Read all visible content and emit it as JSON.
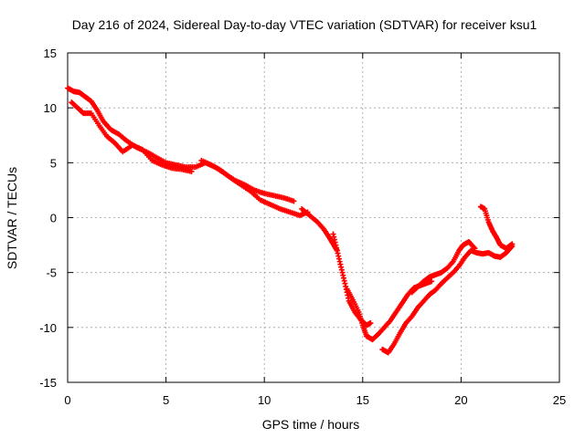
{
  "chart_data": {
    "type": "scatter",
    "title": "Day 216 of 2024, Sidereal Day-to-day VTEC variation (SDTVAR) for receiver ksu1",
    "xlabel": "GPS time / hours",
    "ylabel": "SDTVAR / TECUs",
    "xlim": [
      0,
      25
    ],
    "ylim": [
      -15,
      15
    ],
    "x_ticks": [
      0,
      5,
      10,
      15,
      20,
      25
    ],
    "y_ticks": [
      -15,
      -10,
      -5,
      0,
      5,
      10,
      15
    ],
    "x_tick_labels": [
      "0",
      "5",
      "10",
      "15",
      "20",
      "25"
    ],
    "y_tick_labels": [
      "-15",
      "-10",
      "-5",
      "0",
      "5",
      "10",
      "15"
    ],
    "grid": true,
    "marker": "+",
    "series": [
      {
        "name": "ksu1",
        "color": "#ff0000",
        "tracks": [
          [
            [
              0.0,
              11.8
            ],
            [
              0.3,
              11.5
            ],
            [
              0.6,
              11.4
            ],
            [
              0.9,
              11.0
            ],
            [
              1.2,
              10.6
            ],
            [
              1.5,
              9.8
            ],
            [
              1.8,
              8.8
            ],
            [
              2.2,
              8.0
            ],
            [
              2.6,
              7.6
            ],
            [
              3.0,
              7.0
            ],
            [
              3.5,
              6.4
            ],
            [
              4.0,
              6.0
            ],
            [
              4.5,
              5.5
            ],
            [
              5.0,
              5.0
            ],
            [
              5.5,
              4.8
            ],
            [
              6.0,
              4.6
            ],
            [
              6.5,
              4.6
            ],
            [
              7.0,
              5.0
            ],
            [
              7.5,
              4.6
            ],
            [
              8.0,
              4.0
            ],
            [
              8.5,
              3.4
            ],
            [
              9.0,
              3.0
            ],
            [
              9.5,
              2.5
            ],
            [
              10.0,
              2.2
            ],
            [
              10.5,
              2.0
            ],
            [
              11.0,
              1.8
            ],
            [
              11.5,
              1.5
            ]
          ],
          [
            [
              0.2,
              10.5
            ],
            [
              0.5,
              10.0
            ],
            [
              0.8,
              9.5
            ],
            [
              1.2,
              9.5
            ],
            [
              1.6,
              8.4
            ],
            [
              2.0,
              7.4
            ],
            [
              2.4,
              6.8
            ],
            [
              2.8,
              6.0
            ],
            [
              3.3,
              6.6
            ],
            [
              3.8,
              6.2
            ],
            [
              4.3,
              5.2
            ],
            [
              4.8,
              4.8
            ],
            [
              5.3,
              4.5
            ],
            [
              5.8,
              4.4
            ],
            [
              6.3,
              4.2
            ]
          ],
          [
            [
              6.8,
              5.2
            ],
            [
              7.3,
              4.8
            ],
            [
              7.8,
              4.3
            ],
            [
              8.3,
              3.6
            ],
            [
              8.8,
              3.0
            ],
            [
              9.3,
              2.4
            ],
            [
              9.8,
              1.6
            ],
            [
              10.3,
              1.2
            ],
            [
              10.8,
              0.8
            ],
            [
              11.3,
              0.5
            ],
            [
              11.8,
              0.2
            ],
            [
              12.2,
              0.5
            ]
          ],
          [
            [
              11.9,
              0.8
            ],
            [
              12.3,
              0.2
            ],
            [
              12.7,
              -0.4
            ],
            [
              13.0,
              -1.0
            ],
            [
              13.3,
              -1.8
            ],
            [
              13.5,
              -2.4
            ],
            [
              13.7,
              -3.0
            ]
          ],
          [
            [
              13.5,
              -1.5
            ],
            [
              13.7,
              -3.0
            ],
            [
              13.9,
              -4.5
            ],
            [
              14.1,
              -6.0
            ],
            [
              14.3,
              -7.6
            ],
            [
              14.6,
              -8.6
            ],
            [
              14.9,
              -9.3
            ],
            [
              15.2,
              -9.8
            ],
            [
              15.4,
              -9.6
            ]
          ],
          [
            [
              14.2,
              -6.5
            ],
            [
              14.5,
              -7.5
            ],
            [
              14.8,
              -8.6
            ],
            [
              15.0,
              -9.8
            ],
            [
              15.2,
              -10.8
            ],
            [
              15.5,
              -11.1
            ],
            [
              15.8,
              -10.6
            ],
            [
              16.1,
              -10.0
            ],
            [
              16.4,
              -9.4
            ],
            [
              16.7,
              -8.6
            ],
            [
              17.0,
              -7.8
            ],
            [
              17.3,
              -7.0
            ],
            [
              17.6,
              -6.4
            ],
            [
              17.9,
              -6.2
            ],
            [
              18.2,
              -6.0
            ],
            [
              18.5,
              -5.8
            ]
          ],
          [
            [
              16.0,
              -12.0
            ],
            [
              16.3,
              -12.3
            ],
            [
              16.6,
              -11.5
            ],
            [
              16.9,
              -10.5
            ],
            [
              17.2,
              -9.6
            ],
            [
              17.5,
              -9.0
            ],
            [
              17.8,
              -8.2
            ],
            [
              18.1,
              -7.6
            ],
            [
              18.4,
              -7.0
            ],
            [
              18.7,
              -6.6
            ],
            [
              19.0,
              -6.0
            ],
            [
              19.3,
              -5.5
            ],
            [
              19.6,
              -5.0
            ],
            [
              19.9,
              -4.4
            ],
            [
              20.2,
              -3.6
            ],
            [
              20.5,
              -3.0
            ],
            [
              20.8,
              -3.2
            ],
            [
              21.1,
              -3.3
            ],
            [
              21.4,
              -3.2
            ],
            [
              21.7,
              -3.5
            ],
            [
              22.0,
              -3.6
            ],
            [
              22.3,
              -3.2
            ],
            [
              22.6,
              -2.6
            ]
          ],
          [
            [
              17.5,
              -6.8
            ],
            [
              17.8,
              -6.3
            ],
            [
              18.1,
              -5.8
            ],
            [
              18.4,
              -5.4
            ],
            [
              18.7,
              -5.2
            ],
            [
              19.0,
              -5.0
            ],
            [
              19.3,
              -4.6
            ],
            [
              19.6,
              -4.0
            ],
            [
              19.9,
              -3.0
            ],
            [
              20.1,
              -2.5
            ],
            [
              20.4,
              -2.2
            ],
            [
              20.7,
              -2.8
            ]
          ],
          [
            [
              21.0,
              1.0
            ],
            [
              21.2,
              0.8
            ],
            [
              21.4,
              -0.4
            ],
            [
              21.6,
              -1.2
            ],
            [
              21.8,
              -1.8
            ],
            [
              22.0,
              -2.5
            ],
            [
              22.3,
              -2.8
            ],
            [
              22.6,
              -2.4
            ]
          ]
        ]
      }
    ]
  }
}
